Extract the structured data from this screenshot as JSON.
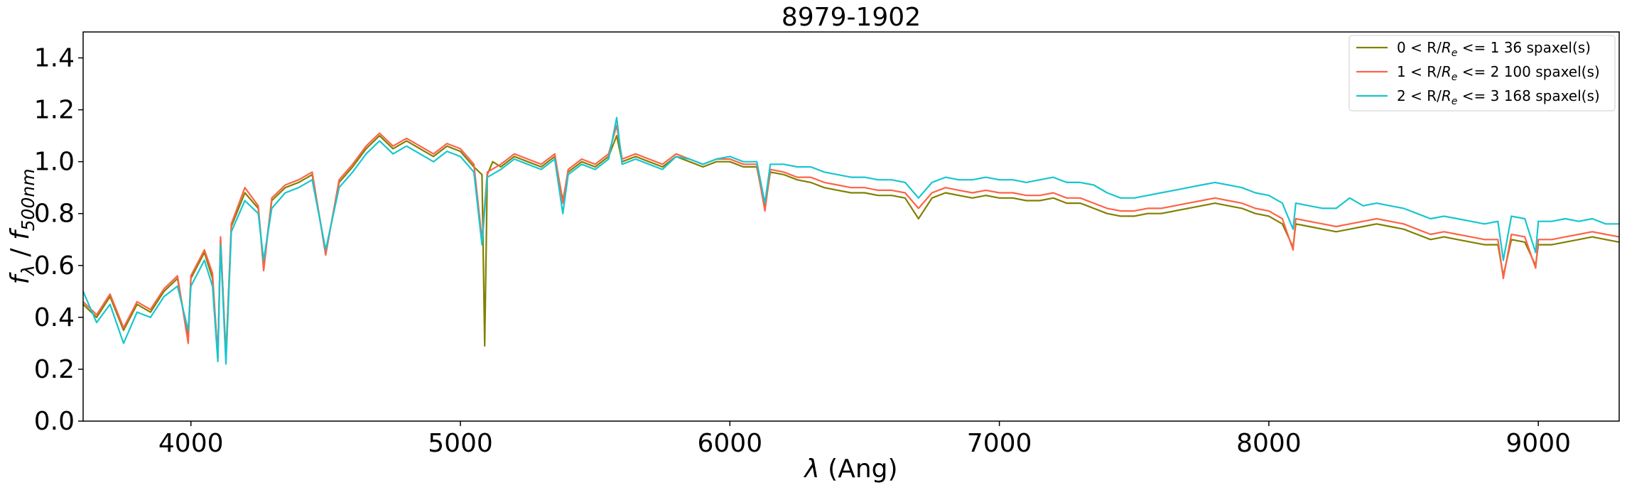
{
  "chart_data": {
    "type": "line",
    "title": "8979-1902",
    "xlabel": {
      "main": "λ",
      "suffix": " (Ang)"
    },
    "ylabel": {
      "f": "f",
      "f_sub": "λ",
      "sep": " / ",
      "f2": "f",
      "f2_sub": "500nm"
    },
    "xlim": [
      3600,
      9300
    ],
    "ylim": [
      0.0,
      1.5
    ],
    "xticks": [
      4000,
      5000,
      6000,
      7000,
      8000,
      9000
    ],
    "xtick_labels": [
      "4000",
      "5000",
      "6000",
      "7000",
      "8000",
      "9000"
    ],
    "yticks": [
      0.0,
      0.2,
      0.4,
      0.6,
      0.8,
      1.0,
      1.2,
      1.4
    ],
    "ytick_labels": [
      "0.0",
      "0.2",
      "0.4",
      "0.6",
      "0.8",
      "1.0",
      "1.2",
      "1.4"
    ],
    "grid": false,
    "legend_position": "top-right",
    "series": [
      {
        "name": "0 < R/Re <= 1 36 spaxel(s)",
        "legend": {
          "pre": "0 < R/",
          "r": "R",
          "sub": "e",
          "post": " <= 1 36 spaxel(s)"
        },
        "color": "#808000",
        "x": [
          3600,
          3650,
          3700,
          3750,
          3800,
          3850,
          3900,
          3950,
          3990,
          4000,
          4050,
          4080,
          4100,
          4110,
          4130,
          4150,
          4200,
          4250,
          4270,
          4300,
          4350,
          4400,
          4450,
          4500,
          4550,
          4600,
          4650,
          4700,
          4750,
          4800,
          4850,
          4900,
          4950,
          5000,
          5050,
          5080,
          5090,
          5100,
          5120,
          5150,
          5200,
          5250,
          5300,
          5350,
          5380,
          5400,
          5450,
          5500,
          5550,
          5580,
          5600,
          5650,
          5700,
          5750,
          5800,
          5850,
          5900,
          5950,
          6000,
          6050,
          6100,
          6130,
          6150,
          6200,
          6250,
          6300,
          6350,
          6400,
          6450,
          6500,
          6550,
          6600,
          6650,
          6700,
          6750,
          6800,
          6850,
          6900,
          6950,
          7000,
          7050,
          7100,
          7150,
          7200,
          7250,
          7300,
          7350,
          7400,
          7450,
          7500,
          7550,
          7600,
          7650,
          7700,
          7750,
          7800,
          7850,
          7900,
          7950,
          8000,
          8050,
          8090,
          8100,
          8150,
          8200,
          8250,
          8300,
          8350,
          8400,
          8450,
          8500,
          8550,
          8600,
          8650,
          8700,
          8750,
          8800,
          8850,
          8870,
          8900,
          8950,
          8990,
          9000,
          9050,
          9100,
          9150,
          9200,
          9250,
          9300
        ],
        "y": [
          0.45,
          0.4,
          0.48,
          0.35,
          0.45,
          0.42,
          0.5,
          0.55,
          0.32,
          0.55,
          0.65,
          0.55,
          0.25,
          0.7,
          0.25,
          0.75,
          0.88,
          0.82,
          0.6,
          0.85,
          0.9,
          0.92,
          0.95,
          0.65,
          0.92,
          0.98,
          1.05,
          1.1,
          1.05,
          1.08,
          1.05,
          1.02,
          1.06,
          1.04,
          0.98,
          0.95,
          0.29,
          0.95,
          1.0,
          0.98,
          1.02,
          1.0,
          0.98,
          1.02,
          0.85,
          0.96,
          1.0,
          0.98,
          1.02,
          1.1,
          1.0,
          1.02,
          1.0,
          0.98,
          1.02,
          1.0,
          0.98,
          1.0,
          1.0,
          0.98,
          0.98,
          0.82,
          0.96,
          0.95,
          0.93,
          0.92,
          0.9,
          0.89,
          0.88,
          0.88,
          0.87,
          0.87,
          0.86,
          0.78,
          0.86,
          0.88,
          0.87,
          0.86,
          0.87,
          0.86,
          0.86,
          0.85,
          0.85,
          0.86,
          0.84,
          0.84,
          0.82,
          0.8,
          0.79,
          0.79,
          0.8,
          0.8,
          0.81,
          0.82,
          0.83,
          0.84,
          0.83,
          0.82,
          0.8,
          0.79,
          0.76,
          0.67,
          0.76,
          0.75,
          0.74,
          0.73,
          0.74,
          0.75,
          0.76,
          0.75,
          0.74,
          0.72,
          0.7,
          0.71,
          0.7,
          0.69,
          0.68,
          0.68,
          0.56,
          0.7,
          0.69,
          0.6,
          0.68,
          0.68,
          0.69,
          0.7,
          0.71,
          0.7,
          0.69
        ]
      },
      {
        "name": "1 < R/Re <= 2 100 spaxel(s)",
        "legend": {
          "pre": "1 < R/",
          "r": "R",
          "sub": "e",
          "post": " <= 2 100 spaxel(s)"
        },
        "color": "#ff6347",
        "x": [
          3600,
          3650,
          3700,
          3750,
          3800,
          3850,
          3900,
          3950,
          3990,
          4000,
          4050,
          4080,
          4100,
          4110,
          4130,
          4150,
          4200,
          4250,
          4270,
          4300,
          4350,
          4400,
          4450,
          4500,
          4550,
          4600,
          4650,
          4700,
          4750,
          4800,
          4850,
          4900,
          4950,
          5000,
          5050,
          5080,
          5100,
          5150,
          5200,
          5250,
          5300,
          5350,
          5380,
          5400,
          5450,
          5500,
          5550,
          5580,
          5600,
          5650,
          5700,
          5750,
          5800,
          5850,
          5900,
          5950,
          6000,
          6050,
          6100,
          6130,
          6150,
          6200,
          6250,
          6300,
          6350,
          6400,
          6450,
          6500,
          6550,
          6600,
          6650,
          6700,
          6750,
          6800,
          6850,
          6900,
          6950,
          7000,
          7050,
          7100,
          7150,
          7200,
          7250,
          7300,
          7350,
          7400,
          7450,
          7500,
          7550,
          7600,
          7650,
          7700,
          7750,
          7800,
          7850,
          7900,
          7950,
          8000,
          8050,
          8090,
          8100,
          8150,
          8200,
          8250,
          8300,
          8350,
          8400,
          8450,
          8500,
          8550,
          8600,
          8650,
          8700,
          8750,
          8800,
          8850,
          8870,
          8900,
          8950,
          8990,
          9000,
          9050,
          9100,
          9150,
          9200,
          9250,
          9300
        ],
        "y": [
          0.46,
          0.41,
          0.49,
          0.36,
          0.46,
          0.43,
          0.51,
          0.56,
          0.3,
          0.56,
          0.66,
          0.57,
          0.24,
          0.71,
          0.24,
          0.76,
          0.9,
          0.83,
          0.58,
          0.86,
          0.91,
          0.93,
          0.96,
          0.64,
          0.93,
          0.99,
          1.06,
          1.11,
          1.06,
          1.09,
          1.06,
          1.03,
          1.07,
          1.05,
          0.99,
          0.7,
          0.96,
          0.99,
          1.03,
          1.01,
          0.99,
          1.03,
          0.84,
          0.97,
          1.01,
          0.99,
          1.03,
          1.14,
          1.01,
          1.03,
          1.01,
          0.99,
          1.03,
          1.01,
          0.99,
          1.01,
          1.01,
          0.99,
          0.99,
          0.81,
          0.97,
          0.96,
          0.94,
          0.94,
          0.92,
          0.91,
          0.9,
          0.9,
          0.89,
          0.89,
          0.88,
          0.82,
          0.88,
          0.9,
          0.89,
          0.88,
          0.89,
          0.88,
          0.88,
          0.87,
          0.87,
          0.88,
          0.86,
          0.86,
          0.84,
          0.82,
          0.81,
          0.81,
          0.82,
          0.82,
          0.83,
          0.84,
          0.85,
          0.86,
          0.85,
          0.84,
          0.82,
          0.81,
          0.78,
          0.66,
          0.78,
          0.77,
          0.76,
          0.75,
          0.76,
          0.77,
          0.78,
          0.77,
          0.76,
          0.74,
          0.72,
          0.73,
          0.72,
          0.71,
          0.7,
          0.7,
          0.55,
          0.72,
          0.71,
          0.59,
          0.7,
          0.7,
          0.71,
          0.72,
          0.73,
          0.72,
          0.71
        ]
      },
      {
        "name": "2 < R/Re <= 3 168 spaxel(s)",
        "legend": {
          "pre": "2 < R/",
          "r": "R",
          "sub": "e",
          "post": " <= 3 168 spaxel(s)"
        },
        "color": "#17c6cf",
        "x": [
          3600,
          3650,
          3700,
          3750,
          3800,
          3850,
          3900,
          3950,
          3990,
          4000,
          4050,
          4080,
          4100,
          4110,
          4130,
          4150,
          4200,
          4250,
          4270,
          4300,
          4350,
          4400,
          4450,
          4500,
          4550,
          4600,
          4650,
          4700,
          4750,
          4800,
          4850,
          4900,
          4950,
          5000,
          5050,
          5080,
          5100,
          5150,
          5200,
          5250,
          5300,
          5350,
          5380,
          5400,
          5450,
          5500,
          5550,
          5580,
          5600,
          5650,
          5700,
          5750,
          5800,
          5850,
          5900,
          5950,
          6000,
          6050,
          6100,
          6130,
          6150,
          6200,
          6250,
          6300,
          6350,
          6400,
          6450,
          6500,
          6550,
          6600,
          6650,
          6700,
          6750,
          6800,
          6850,
          6900,
          6950,
          7000,
          7050,
          7100,
          7150,
          7200,
          7250,
          7300,
          7350,
          7400,
          7450,
          7500,
          7550,
          7600,
          7650,
          7700,
          7750,
          7800,
          7850,
          7900,
          7950,
          8000,
          8050,
          8090,
          8100,
          8150,
          8200,
          8250,
          8300,
          8350,
          8400,
          8450,
          8500,
          8550,
          8600,
          8650,
          8700,
          8750,
          8800,
          8850,
          8870,
          8900,
          8950,
          8990,
          9000,
          9050,
          9100,
          9150,
          9200,
          9250,
          9300
        ],
        "y": [
          0.5,
          0.38,
          0.45,
          0.3,
          0.42,
          0.4,
          0.48,
          0.52,
          0.35,
          0.52,
          0.62,
          0.52,
          0.23,
          0.68,
          0.22,
          0.73,
          0.85,
          0.8,
          0.62,
          0.82,
          0.88,
          0.9,
          0.93,
          0.66,
          0.9,
          0.96,
          1.03,
          1.08,
          1.03,
          1.06,
          1.03,
          1.0,
          1.04,
          1.02,
          0.96,
          0.68,
          0.94,
          0.97,
          1.01,
          0.99,
          0.97,
          1.01,
          0.8,
          0.95,
          0.99,
          0.97,
          1.01,
          1.17,
          0.99,
          1.01,
          0.99,
          0.97,
          1.02,
          1.01,
          0.99,
          1.01,
          1.02,
          1.0,
          1.0,
          0.84,
          0.99,
          0.99,
          0.98,
          0.98,
          0.96,
          0.95,
          0.94,
          0.94,
          0.93,
          0.93,
          0.92,
          0.86,
          0.92,
          0.94,
          0.93,
          0.93,
          0.94,
          0.93,
          0.93,
          0.92,
          0.93,
          0.94,
          0.92,
          0.92,
          0.91,
          0.88,
          0.86,
          0.86,
          0.87,
          0.88,
          0.89,
          0.9,
          0.91,
          0.92,
          0.91,
          0.9,
          0.88,
          0.87,
          0.84,
          0.74,
          0.84,
          0.83,
          0.82,
          0.82,
          0.86,
          0.83,
          0.84,
          0.83,
          0.82,
          0.8,
          0.78,
          0.79,
          0.78,
          0.77,
          0.76,
          0.77,
          0.62,
          0.79,
          0.78,
          0.65,
          0.77,
          0.77,
          0.78,
          0.77,
          0.78,
          0.76,
          0.76
        ]
      }
    ]
  }
}
